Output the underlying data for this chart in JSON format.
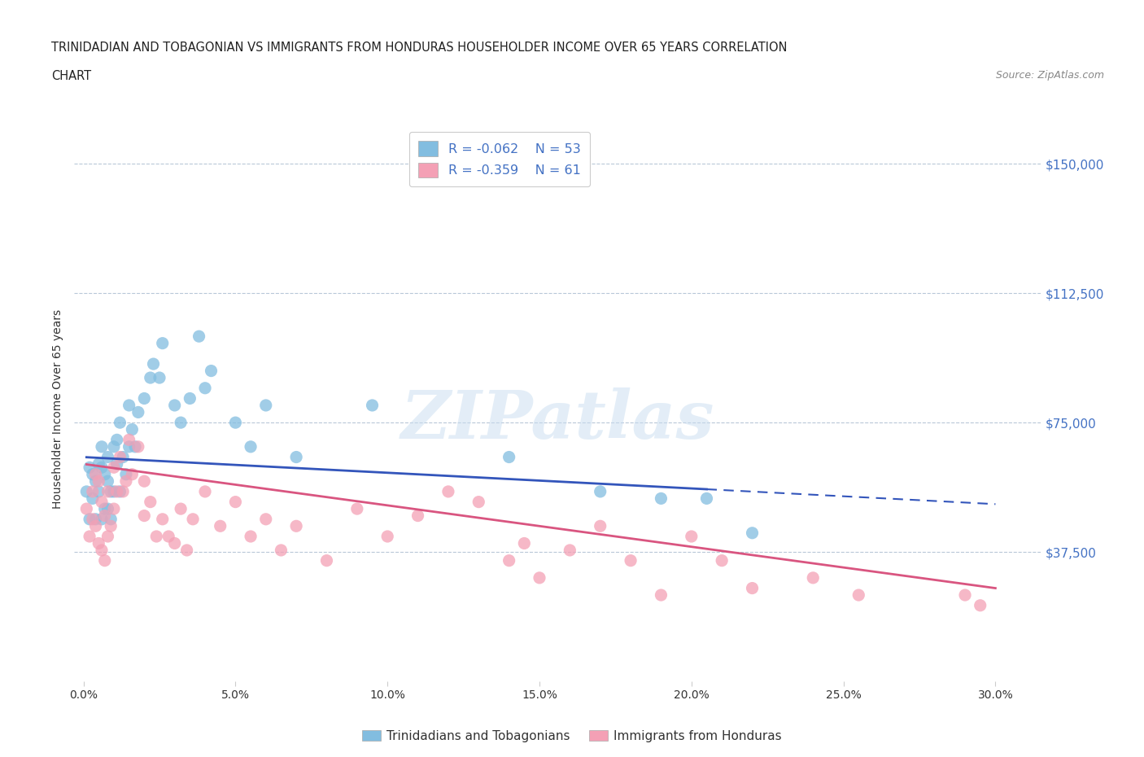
{
  "title_line1": "TRINIDADIAN AND TOBAGONIAN VS IMMIGRANTS FROM HONDURAS HOUSEHOLDER INCOME OVER 65 YEARS CORRELATION",
  "title_line2": "CHART",
  "source": "Source: ZipAtlas.com",
  "ylabel": "Householder Income Over 65 years",
  "xlabel_ticks": [
    "0.0%",
    "5.0%",
    "10.0%",
    "15.0%",
    "20.0%",
    "25.0%",
    "30.0%"
  ],
  "xlabel_vals": [
    0.0,
    5.0,
    10.0,
    15.0,
    20.0,
    25.0,
    30.0
  ],
  "yticks": [
    0,
    37500,
    75000,
    112500,
    150000
  ],
  "ytick_labels": [
    "",
    "$37,500",
    "$75,000",
    "$112,500",
    "$150,000"
  ],
  "xlim": [
    -0.3,
    31.5
  ],
  "ylim": [
    0,
    158000
  ],
  "color_blue": "#82bde0",
  "color_pink": "#f4a0b5",
  "color_blue_line": "#3355bb",
  "color_pink_line": "#d95580",
  "legend_label_blue": "Trinidadians and Tobagonians",
  "legend_label_pink": "Immigrants from Honduras",
  "R_blue": -0.062,
  "N_blue": 53,
  "R_pink": -0.359,
  "N_pink": 61,
  "blue_x": [
    0.1,
    0.2,
    0.2,
    0.3,
    0.3,
    0.4,
    0.4,
    0.5,
    0.5,
    0.6,
    0.6,
    0.6,
    0.7,
    0.7,
    0.8,
    0.8,
    0.8,
    0.9,
    0.9,
    1.0,
    1.0,
    1.1,
    1.1,
    1.2,
    1.2,
    1.3,
    1.4,
    1.5,
    1.5,
    1.6,
    1.7,
    1.8,
    2.0,
    2.2,
    2.3,
    2.5,
    2.6,
    3.0,
    3.2,
    3.5,
    3.8,
    4.0,
    4.2,
    5.0,
    5.5,
    6.0,
    7.0,
    9.5,
    14.0,
    17.0,
    19.0,
    20.5,
    22.0
  ],
  "blue_y": [
    55000,
    62000,
    47000,
    60000,
    53000,
    58000,
    47000,
    63000,
    55000,
    68000,
    62000,
    47000,
    60000,
    50000,
    65000,
    58000,
    50000,
    55000,
    47000,
    68000,
    55000,
    70000,
    63000,
    75000,
    55000,
    65000,
    60000,
    80000,
    68000,
    73000,
    68000,
    78000,
    82000,
    88000,
    92000,
    88000,
    98000,
    80000,
    75000,
    82000,
    100000,
    85000,
    90000,
    75000,
    68000,
    80000,
    65000,
    80000,
    65000,
    55000,
    53000,
    53000,
    43000
  ],
  "pink_x": [
    0.1,
    0.2,
    0.3,
    0.3,
    0.4,
    0.4,
    0.5,
    0.5,
    0.6,
    0.6,
    0.7,
    0.7,
    0.8,
    0.8,
    0.9,
    1.0,
    1.0,
    1.1,
    1.2,
    1.3,
    1.4,
    1.5,
    1.6,
    1.8,
    2.0,
    2.0,
    2.2,
    2.4,
    2.6,
    2.8,
    3.0,
    3.2,
    3.4,
    3.6,
    4.0,
    4.5,
    5.0,
    5.5,
    6.0,
    6.5,
    7.0,
    8.0,
    9.0,
    10.0,
    11.0,
    12.0,
    13.0,
    14.0,
    14.5,
    15.0,
    16.0,
    17.0,
    18.0,
    19.0,
    20.0,
    21.0,
    22.0,
    24.0,
    25.5,
    29.0,
    29.5
  ],
  "pink_y": [
    50000,
    42000,
    55000,
    47000,
    60000,
    45000,
    58000,
    40000,
    52000,
    38000,
    48000,
    35000,
    55000,
    42000,
    45000,
    62000,
    50000,
    55000,
    65000,
    55000,
    58000,
    70000,
    60000,
    68000,
    58000,
    48000,
    52000,
    42000,
    47000,
    42000,
    40000,
    50000,
    38000,
    47000,
    55000,
    45000,
    52000,
    42000,
    47000,
    38000,
    45000,
    35000,
    50000,
    42000,
    48000,
    55000,
    52000,
    35000,
    40000,
    30000,
    38000,
    45000,
    35000,
    25000,
    42000,
    35000,
    27000,
    30000,
    25000,
    25000,
    22000
  ],
  "watermark": "ZIPatlas",
  "grid_color": "#b8c8d8",
  "axis_label_color": "#4472c4",
  "background_color": "#ffffff",
  "blue_solid_x_max": 20.5,
  "blue_line_x_start": 0.1,
  "blue_line_x_end": 30.0,
  "pink_line_x_start": 0.1,
  "pink_line_x_end": 30.0
}
